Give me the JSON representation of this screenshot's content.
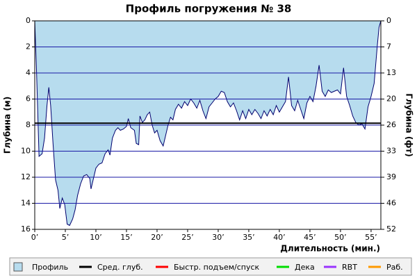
{
  "chart_data": {
    "type": "area",
    "title": "Профиль погружения № 38",
    "ylabel": "Глубина (м)",
    "y2label": "Глубина (фт)",
    "xlabel": "Длительность (мин.)",
    "xlim": [
      0,
      56.6
    ],
    "ylim": [
      0,
      16
    ],
    "y2lim": [
      0,
      52.49
    ],
    "inverted": true,
    "xticks": [
      {
        "value": 0,
        "label": "0’"
      },
      {
        "value": 5,
        "label": "5’"
      },
      {
        "value": 10,
        "label": "10’"
      },
      {
        "value": 15,
        "label": "15’"
      },
      {
        "value": 20,
        "label": "20’"
      },
      {
        "value": 25,
        "label": "25’"
      },
      {
        "value": 30,
        "label": "30’"
      },
      {
        "value": 35,
        "label": "35’"
      },
      {
        "value": 40,
        "label": "40’"
      },
      {
        "value": 45,
        "label": "45’"
      },
      {
        "value": 50,
        "label": "50’"
      },
      {
        "value": 55,
        "label": "55’"
      }
    ],
    "yticks": [
      0,
      2,
      4,
      6,
      8,
      10,
      12,
      14,
      16
    ],
    "y2ticks": [
      0,
      {
        "value": 6.56,
        "label": "7"
      },
      {
        "value": 13.12,
        "label": "13"
      },
      {
        "value": 19.69,
        "label": "20"
      },
      {
        "value": 26.25,
        "label": "26"
      },
      {
        "value": 32.81,
        "label": "33"
      },
      {
        "value": 39.37,
        "label": "39"
      },
      {
        "value": 45.93,
        "label": "46"
      },
      {
        "value": 52.49,
        "label": "52"
      }
    ],
    "grid": true,
    "grid_color": "#1a1aa6",
    "x": [
      0,
      0.3,
      0.7,
      1.2,
      1.6,
      2.0,
      2.3,
      2.6,
      3.0,
      3.4,
      3.8,
      4.1,
      4.5,
      4.9,
      5.3,
      5.7,
      6.2,
      6.6,
      7.0,
      7.5,
      8.0,
      8.5,
      9.0,
      9.2,
      9.6,
      10.0,
      10.5,
      11.0,
      11.5,
      12.0,
      12.3,
      12.7,
      13.2,
      13.6,
      14.0,
      14.5,
      15.0,
      15.3,
      15.7,
      16.3,
      16.6,
      17.0,
      17.2,
      17.6,
      18.0,
      18.4,
      18.8,
      19.2,
      19.6,
      20.0,
      20.5,
      21.0,
      21.4,
      21.8,
      22.2,
      22.6,
      23.0,
      23.5,
      24.0,
      24.5,
      25.0,
      25.5,
      26.0,
      26.5,
      27.0,
      27.5,
      28.0,
      28.5,
      29.0,
      29.5,
      30.0,
      30.5,
      31.0,
      31.5,
      32.0,
      32.5,
      33.0,
      33.5,
      34.0,
      34.5,
      35.0,
      35.5,
      36.0,
      36.5,
      37.0,
      37.5,
      38.0,
      38.5,
      39.0,
      39.5,
      40.0,
      40.5,
      41.0,
      41.5,
      42.0,
      42.5,
      43.0,
      43.5,
      44.0,
      44.5,
      45.0,
      45.5,
      46.0,
      46.5,
      47.0,
      47.5,
      48.0,
      48.5,
      49.0,
      49.5,
      50.0,
      50.5,
      51.0,
      51.5,
      52.0,
      52.5,
      53.0,
      53.5,
      54.0,
      54.5,
      55.0,
      55.5,
      56.0,
      56.3,
      56.6
    ],
    "series": [
      {
        "name": "Профиль",
        "color": "#b7dcee",
        "line_color": "#00006e",
        "values": [
          0,
          4,
          10.4,
          10.2,
          9,
          6.5,
          5.1,
          6.5,
          9.5,
          12.2,
          13,
          14.4,
          13.6,
          14.1,
          15.6,
          15.7,
          15.2,
          14.5,
          13.4,
          12.5,
          11.9,
          11.8,
          12.1,
          12.9,
          12.1,
          11.3,
          11.0,
          10.9,
          10.2,
          9.9,
          10.3,
          9.0,
          8.4,
          8.2,
          8.4,
          8.3,
          8.1,
          7.5,
          8.2,
          8.4,
          9.4,
          9.5,
          7.3,
          7.8,
          7.6,
          7.2,
          7.0,
          8.0,
          8.6,
          8.4,
          9.2,
          9.6,
          8.8,
          8.0,
          7.4,
          7.6,
          6.8,
          6.4,
          6.7,
          6.2,
          6.5,
          6.0,
          6.3,
          6.7,
          6.1,
          6.9,
          7.5,
          6.6,
          6.3,
          6.0,
          5.8,
          5.4,
          5.5,
          6.2,
          6.6,
          6.3,
          6.9,
          7.6,
          6.9,
          7.5,
          6.8,
          7.2,
          6.8,
          7.1,
          7.5,
          6.9,
          7.3,
          6.8,
          7.2,
          6.5,
          7.0,
          6.6,
          6.2,
          4.3,
          6.5,
          6.9,
          6.1,
          6.8,
          7.5,
          6.3,
          5.8,
          6.2,
          5.0,
          3.4,
          5.4,
          5.8,
          5.3,
          5.5,
          5.4,
          5.3,
          5.6,
          3.6,
          5.8,
          6.5,
          7.3,
          7.8,
          8.0,
          7.9,
          8.3,
          6.6,
          5.8,
          4.8,
          2.0,
          0.5,
          0
        ]
      }
    ],
    "mean_depth": 7.85,
    "legend": [
      {
        "name": "Профиль",
        "color": "#b7dcee"
      },
      {
        "name": "Сред. глуб.",
        "color": "#000000"
      },
      {
        "name": "Быстр. подъем/спуск",
        "color": "#ff0000"
      },
      {
        "name": "Дека",
        "color": "#00dd00"
      },
      {
        "name": "RBT",
        "color": "#9933ff"
      },
      {
        "name": "Раб.",
        "color": "#ff9900"
      }
    ]
  }
}
